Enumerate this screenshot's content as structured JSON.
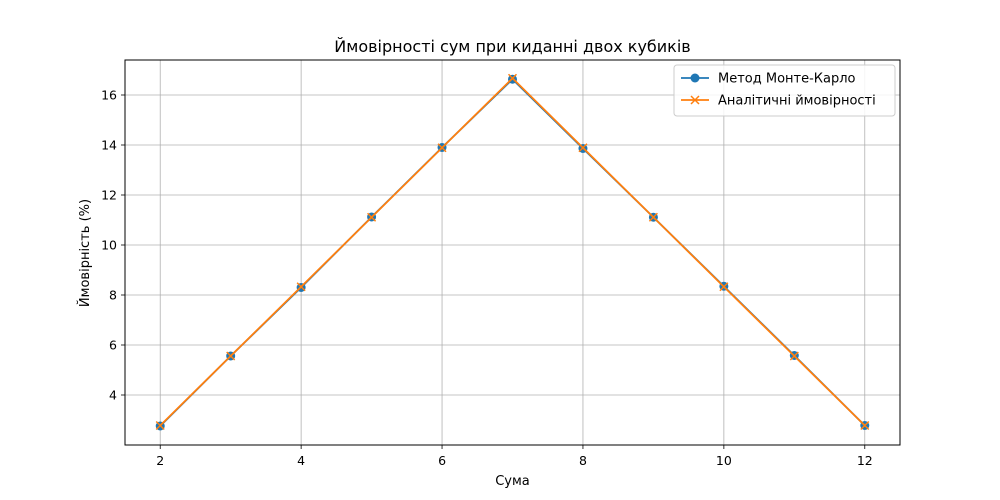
{
  "chart_data": {
    "type": "line",
    "title": "Ймовірності сум при киданні двох кубиків",
    "xlabel": "Сума",
    "ylabel": "Ймовірність (%)",
    "x": [
      2,
      3,
      4,
      5,
      6,
      7,
      8,
      9,
      10,
      11,
      12
    ],
    "xlim": [
      1.5,
      12.5
    ],
    "ylim": [
      2.0,
      17.4
    ],
    "xticks": [
      2,
      4,
      6,
      8,
      10,
      12
    ],
    "yticks": [
      4,
      6,
      8,
      10,
      12,
      14,
      16
    ],
    "grid": true,
    "legend_position": "top-right",
    "series": [
      {
        "name": "Метод Монте-Карло",
        "color": "#1f77b4",
        "marker": "circle",
        "values": [
          2.76,
          5.56,
          8.3,
          11.12,
          13.9,
          16.63,
          13.86,
          11.11,
          8.35,
          5.58,
          2.78
        ]
      },
      {
        "name": "Аналітичні ймовірності",
        "color": "#ff7f0e",
        "marker": "x",
        "values": [
          2.78,
          5.56,
          8.33,
          11.11,
          13.89,
          16.67,
          13.89,
          11.11,
          8.33,
          5.56,
          2.78
        ]
      }
    ]
  }
}
